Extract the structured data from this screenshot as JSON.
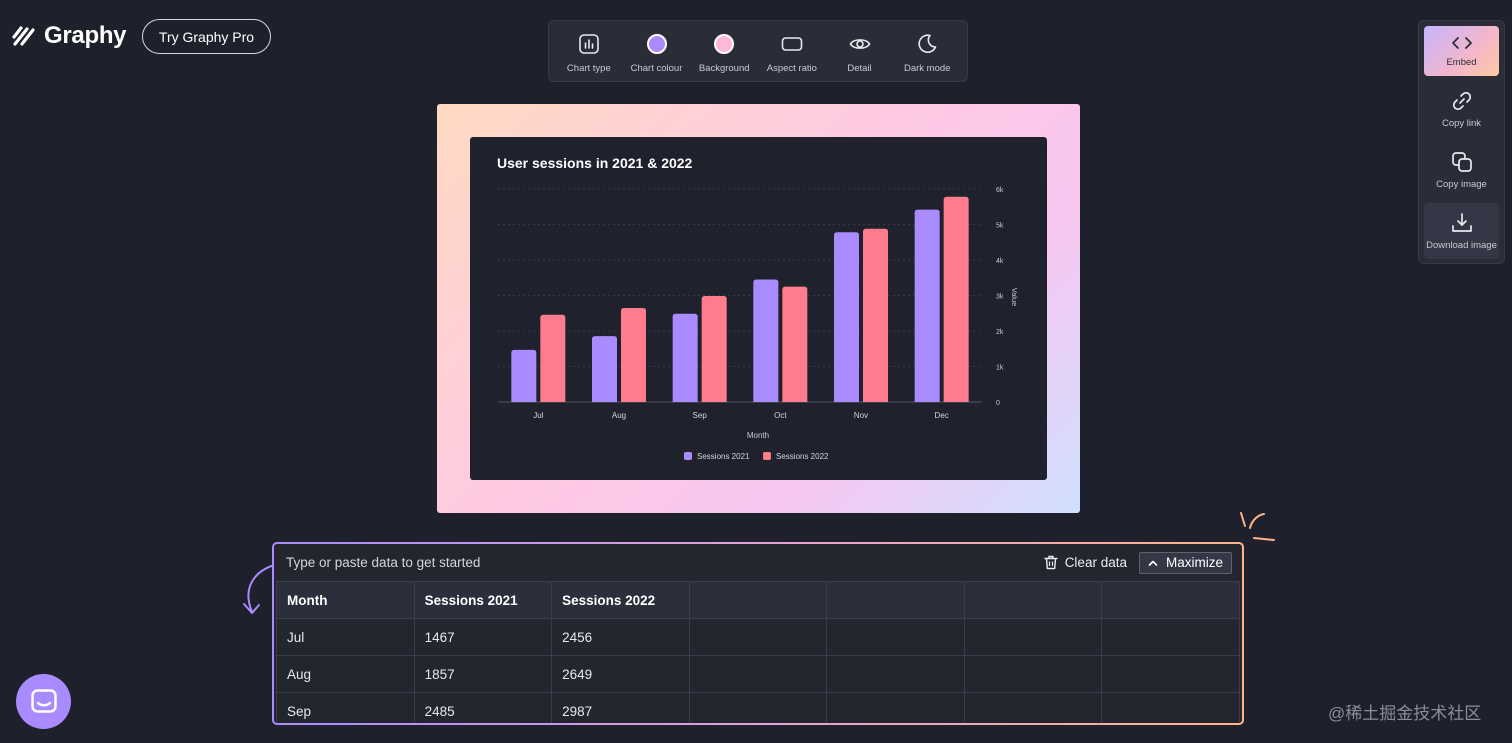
{
  "header": {
    "logo_text": "Graphy",
    "pro_button": "Try Graphy Pro"
  },
  "toolbar": {
    "items": [
      {
        "label": "Chart type",
        "icon": "chart-type-icon"
      },
      {
        "label": "Chart colour",
        "icon": "chart-colour-swatch",
        "color": "#a98bff"
      },
      {
        "label": "Background",
        "icon": "background-swatch",
        "color": "#ffb8d8"
      },
      {
        "label": "Aspect ratio",
        "icon": "aspect-ratio-icon"
      },
      {
        "label": "Detail",
        "icon": "eye-icon"
      },
      {
        "label": "Dark mode",
        "icon": "moon-icon"
      }
    ]
  },
  "side": {
    "items": [
      {
        "label": "Embed",
        "icon": "code-icon"
      },
      {
        "label": "Copy link",
        "icon": "link-icon"
      },
      {
        "label": "Copy image",
        "icon": "copy-icon"
      },
      {
        "label": "Download image",
        "icon": "download-icon"
      }
    ]
  },
  "colors": {
    "series_2021": "#a98bff",
    "series_2022": "#ff7b8e",
    "background": "#1e202c"
  },
  "chart_data": {
    "type": "bar",
    "title": "User sessions in 2021 & 2022",
    "xlabel": "Month",
    "ylabel": "Value",
    "categories": [
      "Jul",
      "Aug",
      "Sep",
      "Oct",
      "Nov",
      "Dec"
    ],
    "series": [
      {
        "name": "Sessions 2021",
        "values": [
          1467,
          1857,
          2485,
          3450,
          4780,
          5420
        ]
      },
      {
        "name": "Sessions 2022",
        "values": [
          2456,
          2649,
          2987,
          3250,
          4880,
          5780
        ]
      }
    ],
    "ylim": [
      0,
      6000
    ],
    "yticks": [
      "0",
      "1k",
      "2k",
      "3k",
      "4k",
      "5k",
      "6k"
    ],
    "grid": true,
    "legend": "bottom"
  },
  "data_panel": {
    "hint": "Type or paste data to get started",
    "clear_label": "Clear data",
    "maximize_label": "Maximize",
    "headers": [
      "Month",
      "Sessions 2021",
      "Sessions 2022",
      "",
      "",
      "",
      ""
    ],
    "rows": [
      [
        "Jul",
        "1467",
        "2456",
        "",
        "",
        "",
        ""
      ],
      [
        "Aug",
        "1857",
        "2649",
        "",
        "",
        "",
        ""
      ],
      [
        "Sep",
        "2485",
        "2987",
        "",
        "",
        "",
        ""
      ]
    ]
  },
  "watermark": "@稀土掘金技术社区"
}
